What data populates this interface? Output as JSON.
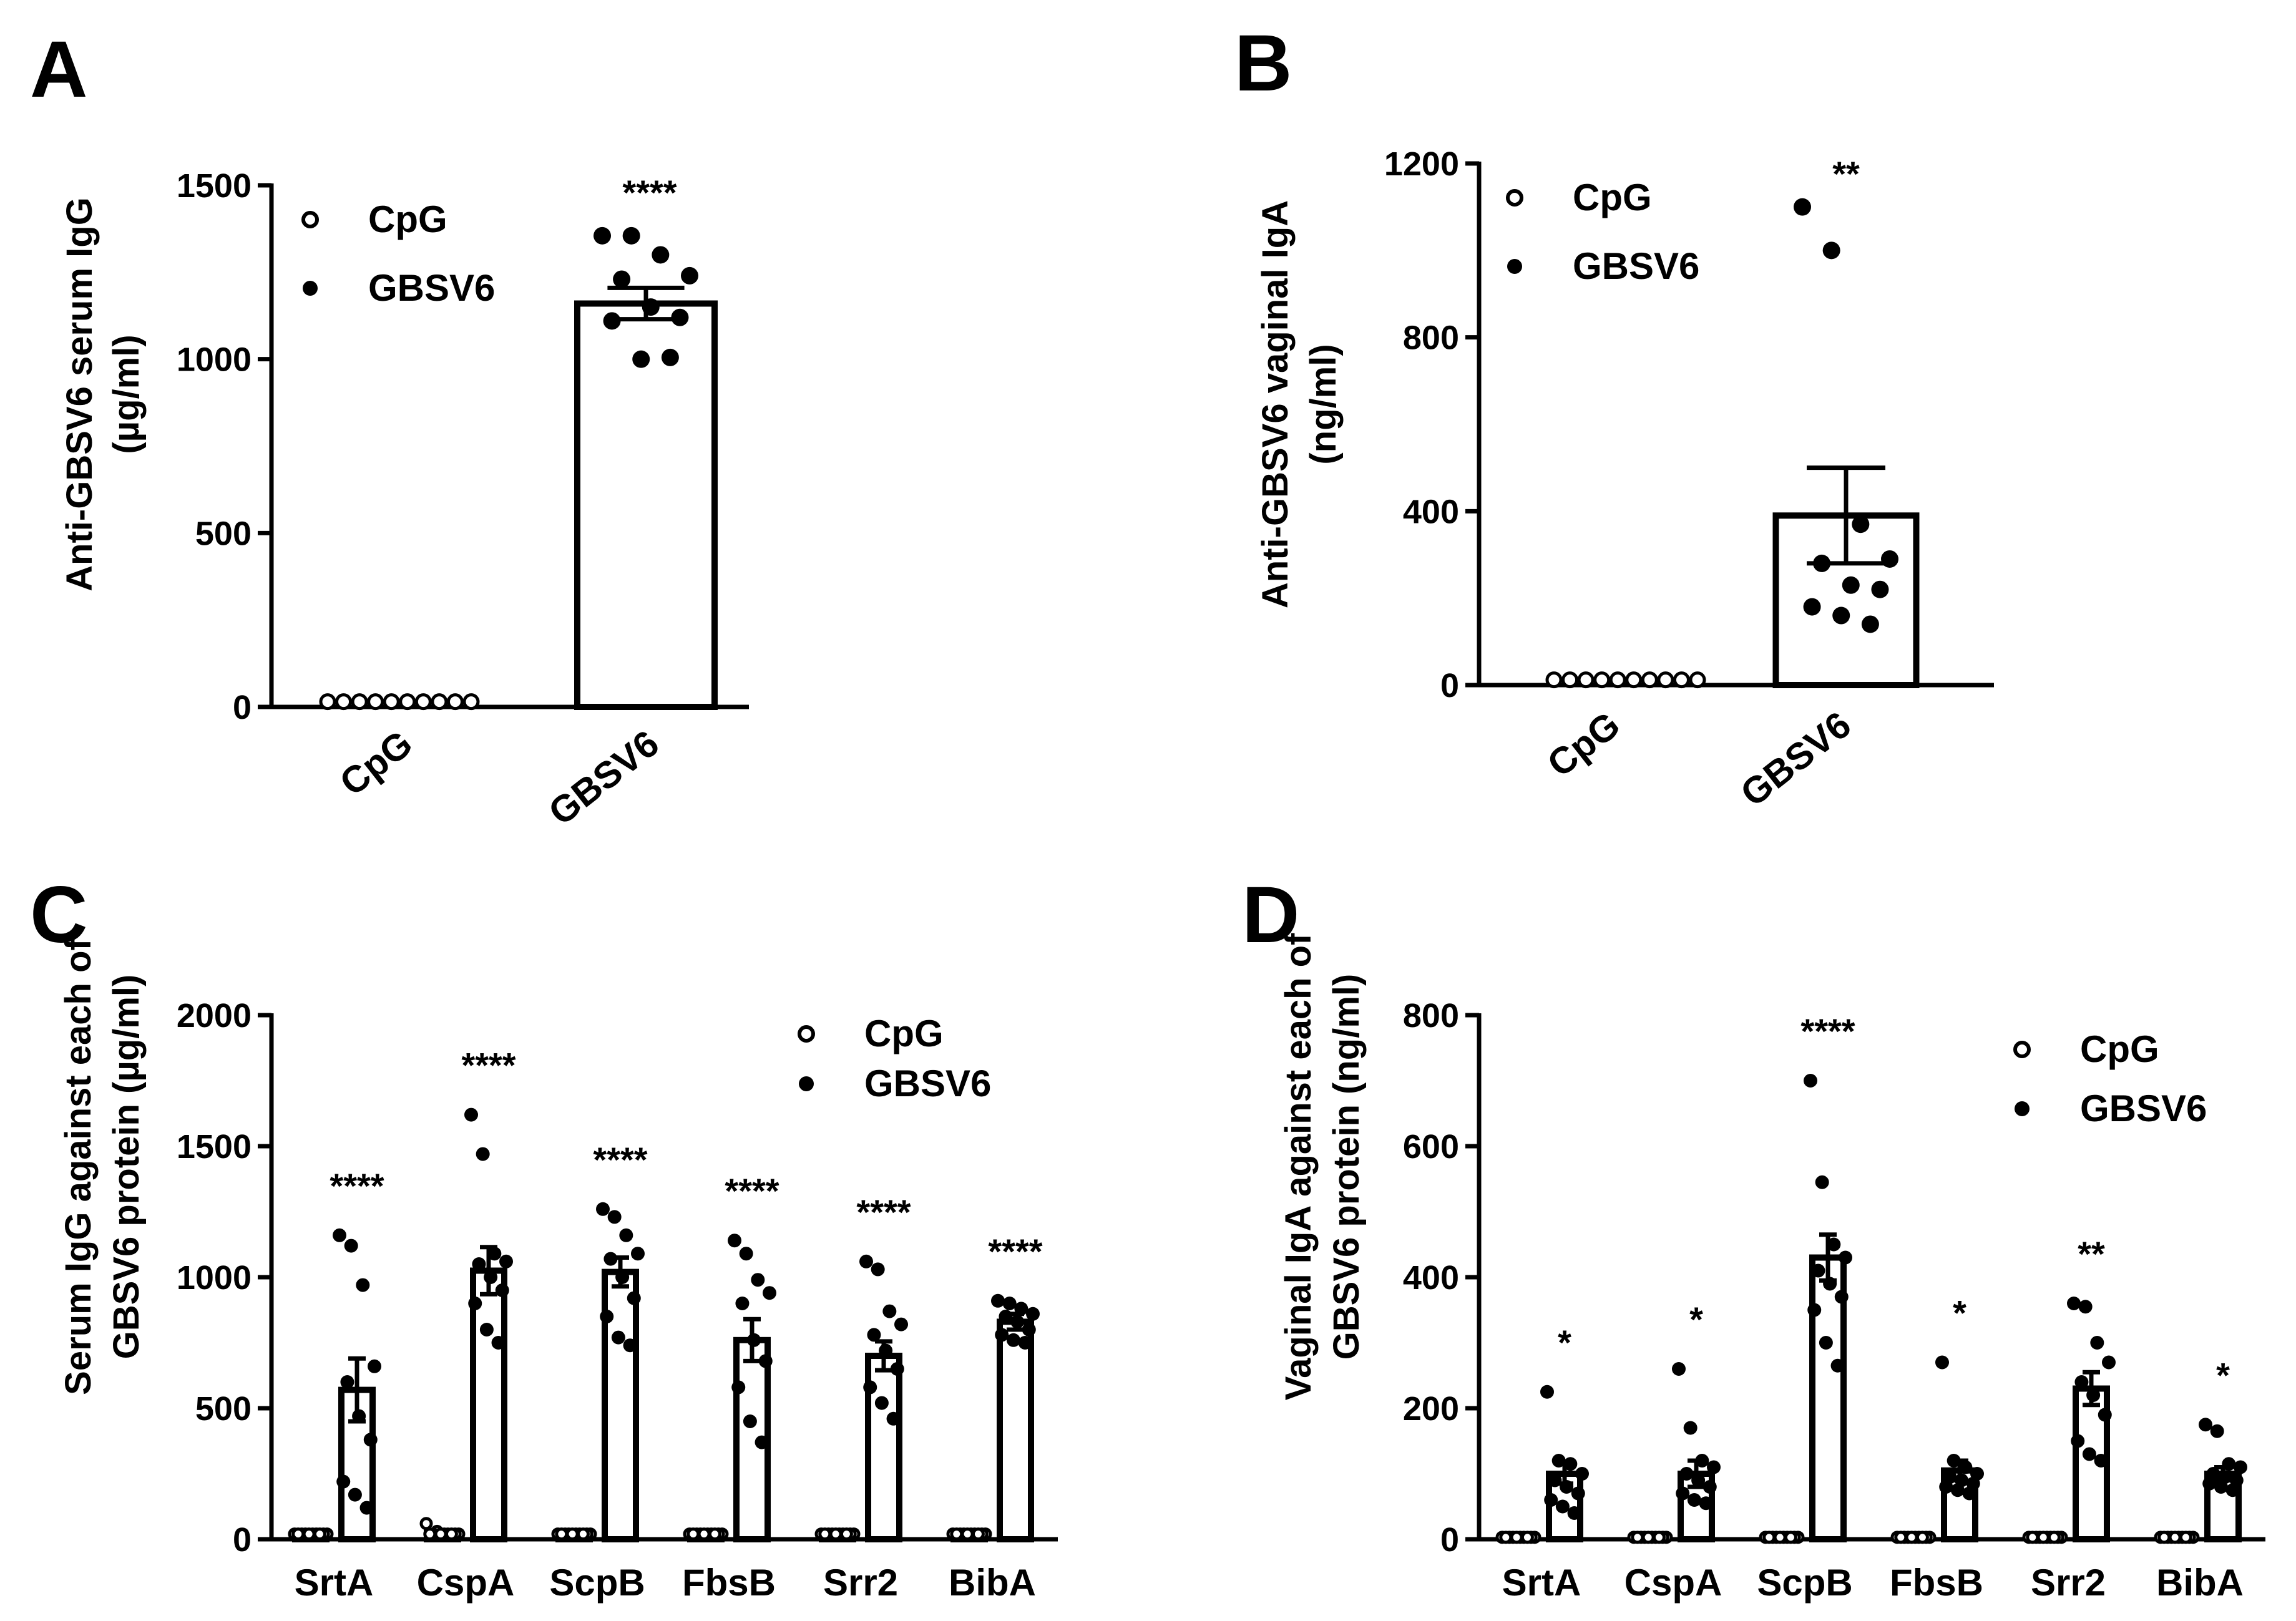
{
  "chart_data": [
    {
      "panel": "A",
      "type": "bar",
      "ylabel_line1": "Anti-GBSV6 serum IgG",
      "ylabel_line2": "(µg/ml)",
      "ylim": [
        0,
        1500
      ],
      "yticks": [
        "0",
        "500",
        "1000",
        "1500"
      ],
      "categories": [
        "CpG",
        "GBSV6"
      ],
      "means": [
        15,
        1160
      ],
      "sem": [
        3,
        45
      ],
      "points": [
        [
          15,
          15,
          15,
          15,
          15,
          15,
          15,
          15,
          15,
          15
        ],
        [
          1355,
          1355,
          1300,
          1240,
          1230,
          1150,
          1120,
          1110,
          1000,
          1005
        ]
      ],
      "significance": [
        "",
        "****"
      ],
      "legend": [
        "CpG",
        "GBSV6"
      ]
    },
    {
      "panel": "B",
      "type": "bar",
      "ylabel_line1": "Anti-GBSV6 vaginal IgA",
      "ylabel_line2": "(ng/ml)",
      "ylim": [
        0,
        1200
      ],
      "yticks": [
        "0",
        "400",
        "800",
        "1200"
      ],
      "categories": [
        "CpG",
        "GBSV6"
      ],
      "means": [
        12,
        390
      ],
      "sem": [
        2,
        110
      ],
      "points": [
        [
          12,
          12,
          12,
          12,
          12,
          12,
          12,
          12,
          12,
          12
        ],
        [
          1100,
          1000,
          370,
          290,
          280,
          230,
          220,
          180,
          160,
          140
        ]
      ],
      "significance": [
        "",
        "**"
      ],
      "legend": [
        "CpG",
        "GBSV6"
      ]
    },
    {
      "panel": "C",
      "type": "bar",
      "ylabel_line1": "Serum IgG against each of",
      "ylabel_line2": "GBSV6 protein (µg/ml)",
      "ylim": [
        0,
        2000
      ],
      "yticks": [
        "0",
        "500",
        "1000",
        "1500",
        "2000"
      ],
      "categories": [
        "SrtA",
        "CspA",
        "ScpB",
        "FbsB",
        "Srr2",
        "BibA"
      ],
      "series": [
        {
          "name": "CpG",
          "means": [
            20,
            25,
            20,
            20,
            20,
            20
          ],
          "sem": [
            3,
            6,
            3,
            3,
            3,
            3
          ],
          "points": [
            [
              20,
              20,
              20,
              20,
              20,
              20,
              20,
              20,
              20,
              20
            ],
            [
              60,
              30,
              20,
              20,
              20,
              20,
              20,
              20,
              20,
              20
            ],
            [
              20,
              20,
              20,
              20,
              20,
              20,
              20,
              20,
              20,
              20
            ],
            [
              20,
              20,
              20,
              20,
              20,
              20,
              20,
              20,
              20,
              20
            ],
            [
              20,
              20,
              20,
              20,
              20,
              20,
              20,
              20,
              20,
              20
            ],
            [
              20,
              20,
              20,
              20,
              20,
              20,
              20,
              20,
              20,
              20
            ]
          ]
        },
        {
          "name": "GBSV6",
          "means": [
            570,
            1025,
            1020,
            760,
            700,
            830
          ],
          "sem": [
            120,
            90,
            55,
            80,
            55,
            30
          ],
          "points": [
            [
              1160,
              1120,
              970,
              660,
              600,
              470,
              380,
              220,
              170,
              120
            ],
            [
              1620,
              1470,
              1090,
              1060,
              1050,
              1000,
              950,
              900,
              800,
              750
            ],
            [
              1260,
              1230,
              1160,
              1090,
              1070,
              1000,
              920,
              850,
              770,
              740
            ],
            [
              1140,
              1090,
              990,
              940,
              900,
              760,
              680,
              580,
              450,
              370
            ],
            [
              1060,
              1030,
              870,
              820,
              780,
              720,
              650,
              580,
              520,
              460
            ],
            [
              910,
              900,
              880,
              860,
              850,
              830,
              800,
              780,
              760,
              750
            ]
          ]
        }
      ],
      "significance": [
        "****",
        "****",
        "****",
        "****",
        "****",
        "****"
      ],
      "legend": [
        "CpG",
        "GBSV6"
      ]
    },
    {
      "panel": "D",
      "type": "bar",
      "ylabel_line1": "Vaginal IgA against each of",
      "ylabel_line2": "GBSV6 protein (ng/ml)",
      "ylim": [
        0,
        800
      ],
      "yticks": [
        "0",
        "200",
        "400",
        "600",
        "800"
      ],
      "categories": [
        "SrtA",
        "CspA",
        "ScpB",
        "FbsB",
        "Srr2",
        "BibA"
      ],
      "series": [
        {
          "name": "CpG",
          "means": [
            3,
            3,
            3,
            3,
            3,
            3
          ],
          "sem": [
            1,
            1,
            1,
            1,
            1,
            1
          ],
          "points": [
            [
              3,
              3,
              3,
              3,
              3,
              3,
              3,
              3,
              3,
              3
            ],
            [
              3,
              3,
              3,
              3,
              3,
              3,
              3,
              3,
              3,
              3
            ],
            [
              3,
              3,
              3,
              3,
              3,
              3,
              3,
              3,
              3,
              3
            ],
            [
              3,
              3,
              3,
              3,
              3,
              3,
              3,
              3,
              3,
              3
            ],
            [
              3,
              3,
              3,
              3,
              3,
              3,
              3,
              3,
              3,
              3
            ],
            [
              3,
              3,
              3,
              3,
              3,
              3,
              3,
              3,
              3,
              3
            ]
          ]
        },
        {
          "name": "GBSV6",
          "means": [
            100,
            100,
            430,
            105,
            230,
            100
          ],
          "sem": [
            15,
            20,
            35,
            15,
            25,
            10
          ],
          "points": [
            [
              225,
              120,
              115,
              100,
              90,
              80,
              70,
              60,
              50,
              40
            ],
            [
              260,
              170,
              120,
              110,
              100,
              90,
              80,
              70,
              60,
              55
            ],
            [
              700,
              545,
              450,
              430,
              410,
              390,
              370,
              350,
              300,
              265
            ],
            [
              270,
              120,
              110,
              100,
              95,
              90,
              85,
              80,
              75,
              70
            ],
            [
              360,
              355,
              300,
              270,
              240,
              220,
              190,
              150,
              130,
              120
            ],
            [
              175,
              165,
              115,
              110,
              100,
              95,
              90,
              85,
              80,
              75
            ]
          ]
        }
      ],
      "significance": [
        "*",
        "*",
        "****",
        "*",
        "**",
        "*"
      ],
      "legend": [
        "CpG",
        "GBSV6"
      ]
    }
  ]
}
